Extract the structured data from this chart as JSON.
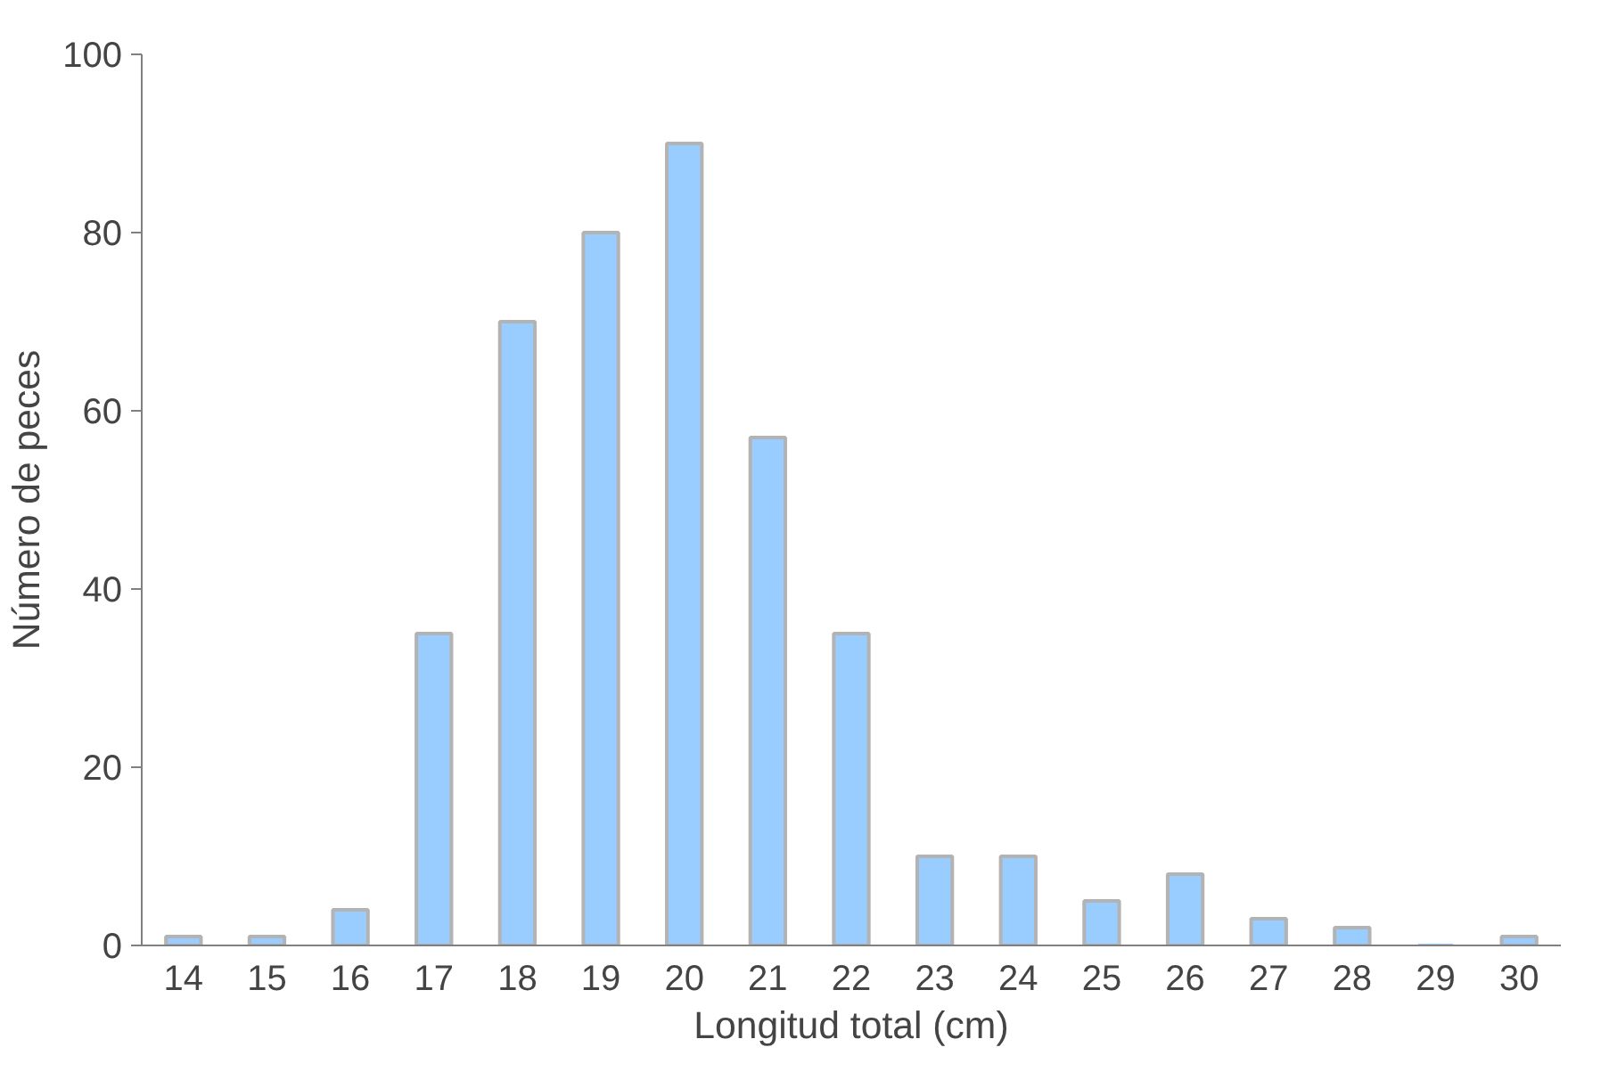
{
  "chart_data": {
    "type": "bar",
    "xlabel": "Longitud total (cm)",
    "ylabel": "Número de peces",
    "categories": [
      "14",
      "15",
      "16",
      "17",
      "18",
      "19",
      "20",
      "21",
      "22",
      "23",
      "24",
      "25",
      "26",
      "27",
      "28",
      "29",
      "30"
    ],
    "values": [
      1,
      1,
      4,
      35,
      70,
      80,
      90,
      57,
      35,
      10,
      10,
      5,
      8,
      3,
      2,
      0,
      1
    ],
    "color": "#99ccff",
    "ylim": [
      0,
      100
    ],
    "yticks": [
      0,
      20,
      40,
      60,
      80,
      100
    ],
    "grid": false
  }
}
